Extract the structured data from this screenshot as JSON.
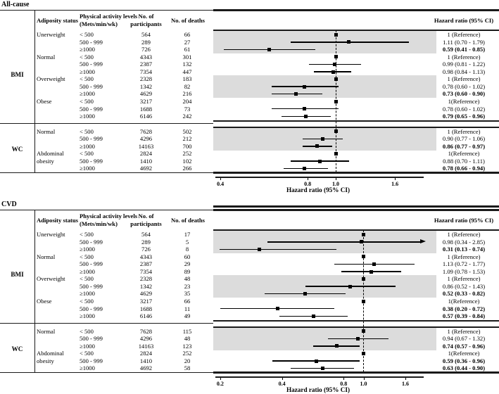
{
  "chart_data": [
    {
      "type": "forest",
      "title": "All-cause",
      "table_headers": {
        "adiposity": "Adiposity status",
        "activity_line1": "Physical activity levels",
        "activity_line2": "(Mets/min/wk)",
        "participants_line1": "No. of",
        "participants_line2": "participants",
        "deaths": "No. of deaths"
      },
      "hazard_header": "Hazard ratio (95% CI)",
      "axis": {
        "label": "Hazard ratio (95% CI)",
        "scale": "log",
        "domain": [
          0.378,
          2.0
        ],
        "ref_line": 1.0,
        "tick_values": [
          0.4,
          0.8,
          1.0,
          1.6
        ],
        "tick_labels": [
          "0.4",
          "0.8",
          "1.0",
          "1.6"
        ]
      },
      "sections": [
        {
          "category": "BMI",
          "rows": [
            {
              "adiposity": "Unerweight",
              "activity": "< 500",
              "participants": "564",
              "deaths": "66",
              "hr_text": "1 (Reference)",
              "ref": true,
              "shaded": true
            },
            {
              "adiposity": "",
              "activity": "500 - 999",
              "participants": "289",
              "deaths": "27",
              "hr_text": "1.11 (0.70 - 1.79)",
              "hr": 1.11,
              "lo": 0.7,
              "hi": 1.79,
              "shaded": true
            },
            {
              "adiposity": "",
              "activity": "≥1000",
              "participants": "726",
              "deaths": "61",
              "hr_text": "0.59 (0.41 - 0.85)",
              "hr": 0.59,
              "lo": 0.41,
              "hi": 0.85,
              "bold": true,
              "shaded": true
            },
            {
              "adiposity": "Normal",
              "activity": "< 500",
              "participants": "4343",
              "deaths": "301",
              "hr_text": "1 (Reference)",
              "ref": true
            },
            {
              "adiposity": "",
              "activity": "500 - 999",
              "participants": "2387",
              "deaths": "132",
              "hr_text": "0.99 (0.81 - 1.22)",
              "hr": 0.99,
              "lo": 0.81,
              "hi": 1.22
            },
            {
              "adiposity": "",
              "activity": "≥1000",
              "participants": "7354",
              "deaths": "447",
              "hr_text": "0.98 (0.84 - 1.13)",
              "hr": 0.98,
              "lo": 0.84,
              "hi": 1.13
            },
            {
              "adiposity": "Overweight",
              "activity": "< 500",
              "participants": "2328",
              "deaths": "183",
              "hr_text": "1 (Reference)",
              "ref": true,
              "shaded": true
            },
            {
              "adiposity": "",
              "activity": "500 - 999",
              "participants": "1342",
              "deaths": "82",
              "hr_text": "0.78 (0.60 - 1.02)",
              "hr": 0.78,
              "lo": 0.6,
              "hi": 1.02,
              "shaded": true
            },
            {
              "adiposity": "",
              "activity": "≥1000",
              "participants": "4629",
              "deaths": "216",
              "hr_text": "0.73 (0.60 - 0.90)",
              "hr": 0.73,
              "lo": 0.6,
              "hi": 0.9,
              "bold": true,
              "shaded": true
            },
            {
              "adiposity": "Obese",
              "activity": "< 500",
              "participants": "3217",
              "deaths": "204",
              "hr_text": "1(Reference)",
              "ref": true
            },
            {
              "adiposity": "",
              "activity": "500 - 999",
              "participants": "1688",
              "deaths": "73",
              "hr_text": "0.78 (0.60 - 1.02)",
              "hr": 0.78,
              "lo": 0.6,
              "hi": 1.02
            },
            {
              "adiposity": "",
              "activity": "≥1000",
              "participants": "6146",
              "deaths": "242",
              "hr_text": "0.79 (0.65 - 0.96)",
              "hr": 0.79,
              "lo": 0.65,
              "hi": 0.96,
              "bold": true
            }
          ]
        },
        {
          "category": "WC",
          "rows": [
            {
              "adiposity": "Normal",
              "activity": "< 500",
              "participants": "7628",
              "deaths": "502",
              "hr_text": "1 (Reference)",
              "ref": true,
              "shaded": true
            },
            {
              "adiposity": "",
              "activity": "500 - 999",
              "participants": "4296",
              "deaths": "212",
              "hr_text": "0.90 (0.77 - 1.06)",
              "hr": 0.9,
              "lo": 0.77,
              "hi": 1.06,
              "shaded": true
            },
            {
              "adiposity": "",
              "activity": "≥1000",
              "participants": "14163",
              "deaths": "700",
              "hr_text": "0.86 (0.77 - 0.97)",
              "hr": 0.86,
              "lo": 0.77,
              "hi": 0.97,
              "bold": true,
              "shaded": true
            },
            {
              "adiposity": "Abdominal",
              "activity": "< 500",
              "participants": "2824",
              "deaths": "252",
              "hr_text": "1(Reference)",
              "ref": true
            },
            {
              "adiposity": "obesity",
              "activity": "500 - 999",
              "participants": "1410",
              "deaths": "102",
              "hr_text": "0.88 (0.70 - 1.11)",
              "hr": 0.88,
              "lo": 0.7,
              "hi": 1.11
            },
            {
              "adiposity": "",
              "activity": "≥1000",
              "participants": "4692",
              "deaths": "266",
              "hr_text": "0.78 (0.66 - 0.94)",
              "hr": 0.78,
              "lo": 0.66,
              "hi": 0.94,
              "bold": true
            }
          ]
        }
      ]
    },
    {
      "type": "forest",
      "title": "CVD",
      "table_headers": {
        "adiposity": "Adiposity status",
        "activity_line1": "Physical activity levels",
        "activity_line2": "(Mets/min/wk)",
        "participants_line1": "No. of",
        "participants_line2": "participants",
        "deaths": "No. of deaths"
      },
      "hazard_header": "Hazard ratio (95% CI)",
      "axis": {
        "label": "Hazard ratio (95% CI)",
        "scale": "log",
        "domain": [
          0.185,
          1.95
        ],
        "ref_line": 1.0,
        "tick_values": [
          0.2,
          0.4,
          0.8,
          1.0,
          1.6
        ],
        "tick_labels": [
          "0.2",
          "0.4",
          "0.8",
          "1.0",
          "1.6"
        ]
      },
      "sections": [
        {
          "category": "BMI",
          "rows": [
            {
              "adiposity": "Unerweight",
              "activity": "< 500",
              "participants": "564",
              "deaths": "17",
              "hr_text": "1 (Reference)",
              "ref": true,
              "shaded": true
            },
            {
              "adiposity": "",
              "activity": "500 - 999",
              "participants": "289",
              "deaths": "5",
              "hr_text": "0.98 (0.34 - 2.85)",
              "hr": 0.98,
              "lo": 0.34,
              "hi": 2.85,
              "arrow_hi": true,
              "shaded": true
            },
            {
              "adiposity": "",
              "activity": "≥1000",
              "participants": "726",
              "deaths": "8",
              "hr_text": "0.31 (0.13 - 0.74)",
              "hr": 0.31,
              "lo": 0.13,
              "hi": 0.74,
              "bold": true,
              "shaded": true
            },
            {
              "adiposity": "Normal",
              "activity": "< 500",
              "participants": "4343",
              "deaths": "60",
              "hr_text": "1 (Reference)",
              "ref": true
            },
            {
              "adiposity": "",
              "activity": "500 - 999",
              "participants": "2387",
              "deaths": "29",
              "hr_text": "1.13 (0.72 - 1.77)",
              "hr": 1.13,
              "lo": 0.72,
              "hi": 1.77
            },
            {
              "adiposity": "",
              "activity": "≥1000",
              "participants": "7354",
              "deaths": "89",
              "hr_text": "1.09 (0.78 - 1.53)",
              "hr": 1.09,
              "lo": 0.78,
              "hi": 1.53
            },
            {
              "adiposity": "Overweight",
              "activity": "< 500",
              "participants": "2328",
              "deaths": "48",
              "hr_text": "1 (Reference)",
              "ref": true,
              "shaded": true
            },
            {
              "adiposity": "",
              "activity": "500 - 999",
              "participants": "1342",
              "deaths": "23",
              "hr_text": "0.86 (0.52 - 1.43)",
              "hr": 0.86,
              "lo": 0.52,
              "hi": 1.43,
              "shaded": true
            },
            {
              "adiposity": "",
              "activity": "≥1000",
              "participants": "4629",
              "deaths": "35",
              "hr_text": "0.52 (0.33 - 0.82)",
              "hr": 0.52,
              "lo": 0.33,
              "hi": 0.82,
              "bold": true,
              "shaded": true
            },
            {
              "adiposity": "Obese",
              "activity": "< 500",
              "participants": "3217",
              "deaths": "66",
              "hr_text": "1(Reference)",
              "ref": true
            },
            {
              "adiposity": "",
              "activity": "500 - 999",
              "participants": "1688",
              "deaths": "11",
              "hr_text": "0.38 (0.20 - 0.72)",
              "hr": 0.38,
              "lo": 0.2,
              "hi": 0.72,
              "bold": true
            },
            {
              "adiposity": "",
              "activity": "≥1000",
              "participants": "6146",
              "deaths": "49",
              "hr_text": "0.57 (0.39 - 0.84)",
              "hr": 0.57,
              "lo": 0.39,
              "hi": 0.84,
              "bold": true
            }
          ]
        },
        {
          "category": "WC",
          "rows": [
            {
              "adiposity": "Normal",
              "activity": "< 500",
              "participants": "7628",
              "deaths": "115",
              "hr_text": "1 (Reference)",
              "ref": true,
              "shaded": true
            },
            {
              "adiposity": "",
              "activity": "500 - 999",
              "participants": "4296",
              "deaths": "48",
              "hr_text": "0.94 (0.67 - 1.32)",
              "hr": 0.94,
              "lo": 0.67,
              "hi": 1.32,
              "shaded": true
            },
            {
              "adiposity": "",
              "activity": "≥1000",
              "participants": "14163",
              "deaths": "123",
              "hr_text": "0.74 (0.57 - 0.96)",
              "hr": 0.74,
              "lo": 0.57,
              "hi": 0.96,
              "bold": true,
              "shaded": true
            },
            {
              "adiposity": "Abdominal",
              "activity": "< 500",
              "participants": "2824",
              "deaths": "252",
              "hr_text": "1(Reference)",
              "ref": true
            },
            {
              "adiposity": "obesity",
              "activity": "500 - 999",
              "participants": "1410",
              "deaths": "20",
              "hr_text": "0.59 (0.36 - 0.96)",
              "hr": 0.59,
              "lo": 0.36,
              "hi": 0.96,
              "bold": true
            },
            {
              "adiposity": "",
              "activity": "≥1000",
              "participants": "4692",
              "deaths": "58",
              "hr_text": "0.63 (0.44 - 0.90)",
              "hr": 0.63,
              "lo": 0.44,
              "hi": 0.9,
              "bold": true
            }
          ]
        }
      ]
    }
  ]
}
